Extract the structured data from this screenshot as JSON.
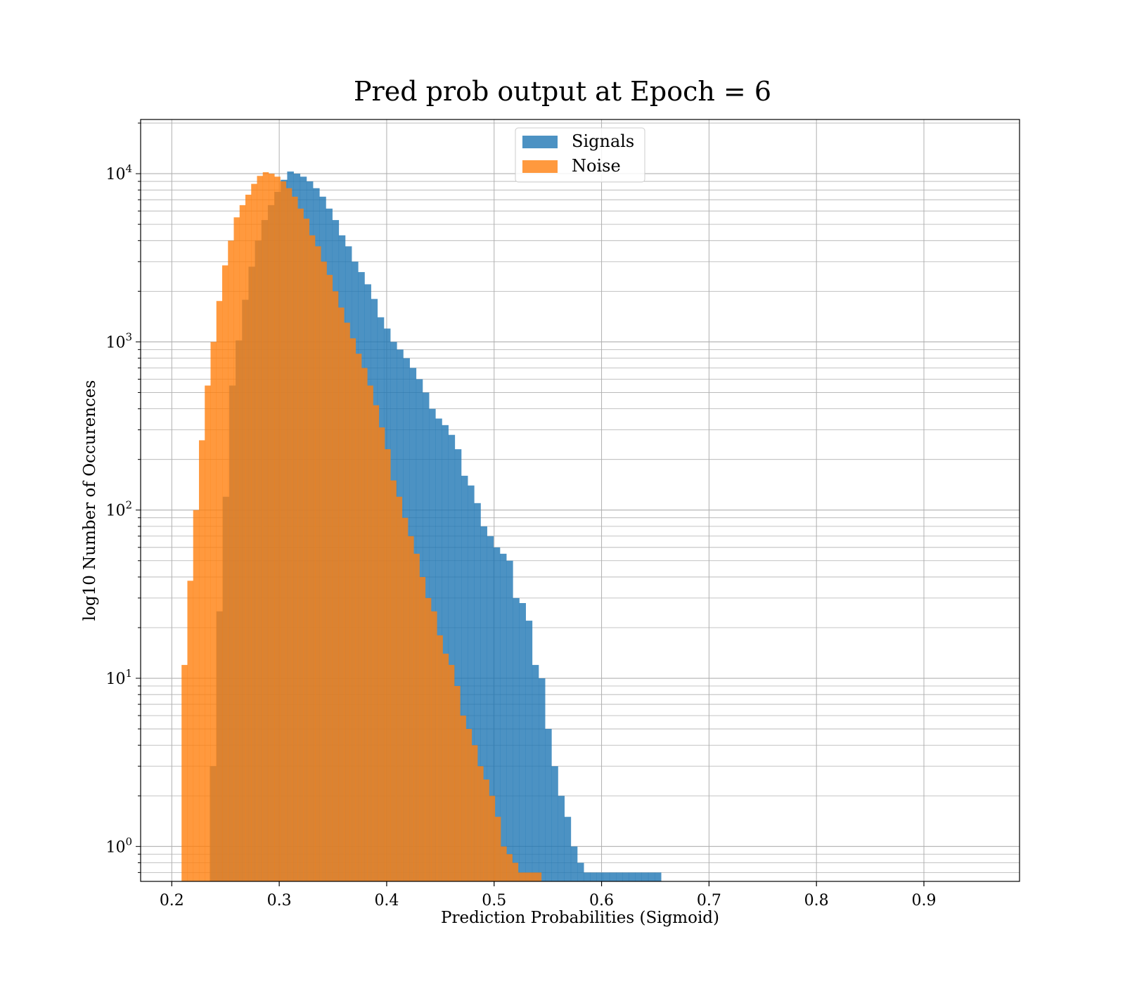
{
  "chart_data": {
    "type": "bar",
    "subtype": "histogram",
    "title": "Pred prob output at Epoch = 6",
    "xlabel": "Prediction Probabilities (Sigmoid)",
    "ylabel": "log10 Number of Occurences",
    "xlim": [
      0.171,
      0.989
    ],
    "ylim": [
      0.62,
      21000
    ],
    "yscale": "log",
    "grid": true,
    "legend_position": "top-center",
    "x_ticks": [
      0.2,
      0.3,
      0.4,
      0.5,
      0.6,
      0.7,
      0.8,
      0.9
    ],
    "x_tick_labels": [
      "0.2",
      "0.3",
      "0.4",
      "0.5",
      "0.6",
      "0.7",
      "0.8",
      "0.9"
    ],
    "y_ticks": [
      1,
      10,
      100,
      1000,
      10000
    ],
    "y_tick_labels": [
      {
        "base": "10",
        "exp": "0"
      },
      {
        "base": "10",
        "exp": "1"
      },
      {
        "base": "10",
        "exp": "2"
      },
      {
        "base": "10",
        "exp": "3"
      },
      {
        "base": "10",
        "exp": "4"
      }
    ],
    "series": [
      {
        "name": "Signals",
        "color": "#1f77b4",
        "opacity": 0.8,
        "bin_start": 0.2354,
        "bin_width": 0.006,
        "counts": [
          3,
          25,
          120,
          550,
          1020,
          1780,
          2800,
          4000,
          5300,
          6500,
          7800,
          9200,
          10300,
          10000,
          9600,
          9000,
          8200,
          7300,
          6200,
          5300,
          4300,
          3700,
          3000,
          2600,
          2200,
          1800,
          1400,
          1200,
          1000,
          900,
          800,
          700,
          600,
          500,
          400,
          350,
          320,
          280,
          230,
          160,
          140,
          110,
          80,
          70,
          60,
          55,
          50,
          30,
          28,
          22,
          12,
          10,
          5,
          3,
          2,
          1.5,
          1,
          0.8,
          0.7,
          0.7,
          0.7,
          0.7,
          0.7,
          0.7,
          0.7,
          0.7,
          0.7,
          0.7,
          0.7,
          0.7
        ]
      },
      {
        "name": "Noise",
        "color": "#ff7f0e",
        "opacity": 0.8,
        "bin_start": 0.2091,
        "bin_width": 0.0054,
        "counts": [
          12,
          38,
          100,
          260,
          550,
          1000,
          1750,
          2850,
          4000,
          5500,
          6500,
          7500,
          8700,
          9700,
          10200,
          10000,
          9600,
          9000,
          8200,
          7300,
          6200,
          5400,
          4300,
          3700,
          3000,
          2500,
          2000,
          1600,
          1300,
          1050,
          850,
          700,
          550,
          420,
          310,
          230,
          150,
          120,
          90,
          70,
          55,
          40,
          30,
          25,
          18,
          14,
          12,
          9,
          6,
          5,
          4,
          3,
          2.5,
          2,
          1.5,
          1,
          0.9,
          0.8,
          0.7,
          0.7,
          0.7,
          0.7
        ]
      }
    ]
  }
}
